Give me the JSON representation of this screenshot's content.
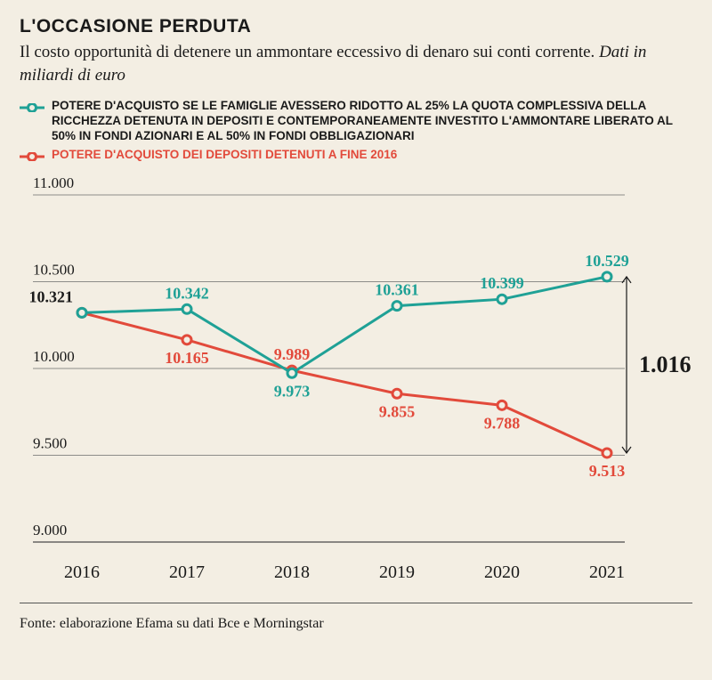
{
  "title": "L'OCCASIONE PERDUTA",
  "subtitle_plain": "Il costo opportunità di detenere un ammontare eccessivo di denaro sui conti corrente. ",
  "subtitle_italic": "Dati in miliardi di euro",
  "legend": {
    "series1": {
      "color": "#1fa196",
      "text": "POTERE D'ACQUISTO SE LE FAMIGLIE AVESSERO RIDOTTO AL 25% LA QUOTA COMPLESSIVA DELLA RICCHEZZA DETENUTA IN DEPOSITI E CONTEMPORANEAMENTE INVESTITO L'AMMONTARE LIBERATO AL 50% IN FONDI AZIONARI E AL 50% IN FONDI OBBLIGAZIONARI"
    },
    "series2": {
      "color": "#e24a3b",
      "text": "POTERE D'ACQUISTO DEI DEPOSITI DETENUTI A FINE 2016"
    }
  },
  "chart": {
    "type": "line",
    "background_color": "#f3eee3",
    "grid_color": "#6b6b6b",
    "axis_color": "#4a4a4a",
    "tick_font_size": 17,
    "label_font_size": 18,
    "point_label_font_size": 18,
    "line_width": 3,
    "marker_radius": 5,
    "marker_fill": "#f3eee3",
    "ylim": [
      9000,
      11000
    ],
    "ytick_step": 500,
    "ytick_labels": [
      "9.000",
      "9.500",
      "10.000",
      "10.500",
      "11.000"
    ],
    "xcategories": [
      "2016",
      "2017",
      "2018",
      "2019",
      "2020",
      "2021"
    ],
    "series1": {
      "color": "#1fa196",
      "values": [
        10321,
        10342,
        9973,
        10361,
        10399,
        10529
      ],
      "labels": [
        "10.321",
        "10.342",
        "9.973",
        "10.361",
        "10.399",
        "10.529"
      ],
      "label_pos": [
        "above-left",
        "above",
        "below",
        "above",
        "above",
        "above"
      ]
    },
    "series2": {
      "color": "#e24a3b",
      "values": [
        10321,
        10165,
        9989,
        9855,
        9788,
        9513
      ],
      "labels": [
        "",
        "10.165",
        "9.989",
        "9.855",
        "9.788",
        "9.513"
      ],
      "label_pos": [
        "none",
        "below",
        "above",
        "below",
        "below",
        "below"
      ]
    },
    "gap_callout": {
      "value": "1.016",
      "font_size": 26,
      "color": "#1a1a1a"
    }
  },
  "source": "Fonte: elaborazione Efama su dati Bce e Morningstar"
}
